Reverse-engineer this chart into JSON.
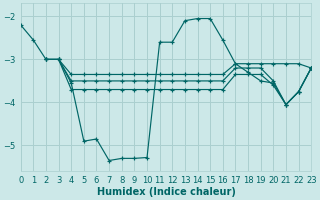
{
  "xlabel": "Humidex (Indice chaleur)",
  "bg_color": "#cce8e8",
  "line_color": "#006666",
  "grid_color": "#aacfcf",
  "xlim": [
    0,
    23
  ],
  "ylim": [
    -5.6,
    -1.7
  ],
  "yticks": [
    -5,
    -4,
    -3,
    -2
  ],
  "xticks": [
    0,
    1,
    2,
    3,
    4,
    5,
    6,
    7,
    8,
    9,
    10,
    11,
    12,
    13,
    14,
    15,
    16,
    17,
    18,
    19,
    20,
    21,
    22,
    23
  ],
  "line1_x": [
    0,
    1,
    2,
    3,
    4,
    5,
    6,
    7,
    8,
    9,
    10,
    11,
    12,
    13,
    14,
    15,
    16,
    17,
    18,
    19,
    20,
    21,
    22,
    23
  ],
  "line1_y": [
    -2.2,
    -2.55,
    -3.0,
    -3.0,
    -3.55,
    -4.9,
    -4.85,
    -5.35,
    -5.3,
    -5.3,
    -5.28,
    -2.6,
    -2.6,
    -2.1,
    -2.05,
    -2.05,
    -2.55,
    -3.1,
    -3.3,
    -3.5,
    -3.55,
    -4.05,
    -3.75,
    -3.2
  ],
  "line2_x": [
    2,
    3,
    4,
    5,
    6,
    7,
    8,
    9,
    10,
    11,
    12,
    13,
    14,
    15,
    16,
    17,
    18,
    19,
    20,
    21,
    22,
    23
  ],
  "line2_y": [
    -3.0,
    -3.0,
    -3.35,
    -3.35,
    -3.35,
    -3.35,
    -3.35,
    -3.35,
    -3.35,
    -3.35,
    -3.35,
    -3.35,
    -3.35,
    -3.35,
    -3.35,
    -3.1,
    -3.1,
    -3.1,
    -3.1,
    -3.1,
    -3.1,
    -3.2
  ],
  "line3_x": [
    2,
    3,
    4,
    5,
    6,
    7,
    8,
    9,
    10,
    11,
    12,
    13,
    14,
    15,
    16,
    17,
    18,
    19,
    20,
    21,
    22,
    23
  ],
  "line3_y": [
    -3.0,
    -3.0,
    -3.5,
    -3.5,
    -3.5,
    -3.5,
    -3.5,
    -3.5,
    -3.5,
    -3.5,
    -3.5,
    -3.5,
    -3.5,
    -3.5,
    -3.5,
    -3.2,
    -3.2,
    -3.2,
    -3.5,
    -4.05,
    -3.75,
    -3.2
  ],
  "line4_x": [
    2,
    3,
    4,
    5,
    6,
    7,
    8,
    9,
    10,
    11,
    12,
    13,
    14,
    15,
    16,
    17,
    18,
    19,
    20,
    21,
    22,
    23
  ],
  "line4_y": [
    -3.0,
    -3.0,
    -3.7,
    -3.7,
    -3.7,
    -3.7,
    -3.7,
    -3.7,
    -3.7,
    -3.7,
    -3.7,
    -3.7,
    -3.7,
    -3.7,
    -3.7,
    -3.35,
    -3.35,
    -3.35,
    -3.6,
    -4.05,
    -3.75,
    -3.2
  ]
}
